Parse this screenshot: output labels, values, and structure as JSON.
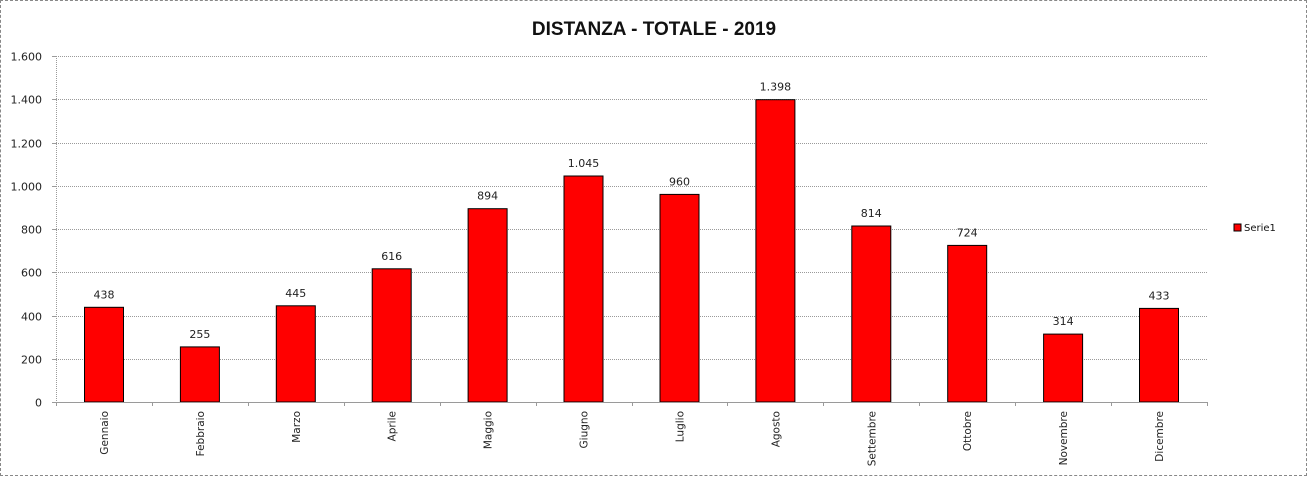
{
  "chart_data": {
    "type": "bar",
    "title": "DISTANZA - TOTALE - 2019",
    "xlabel": "",
    "ylabel": "",
    "categories": [
      "Gennaio",
      "Febbraio",
      "Marzo",
      "Aprile",
      "Maggio",
      "Giugno",
      "Luglio",
      "Agosto",
      "Settembre",
      "Ottobre",
      "Novembre",
      "Dicembre"
    ],
    "series": [
      {
        "name": "Serie1",
        "color": "#ff0000",
        "values": [
          438,
          255,
          445,
          616,
          894,
          1045,
          960,
          1398,
          814,
          724,
          314,
          433
        ],
        "labels": [
          "438",
          "255",
          "445",
          "616",
          "894",
          "1.045",
          "960",
          "1.398",
          "814",
          "724",
          "314",
          "433"
        ]
      }
    ],
    "ylim": [
      0,
      1600
    ],
    "yticks": [
      0,
      200,
      400,
      600,
      800,
      1000,
      1200,
      1400,
      1600
    ],
    "ytick_labels": [
      "0",
      "200",
      "400",
      "600",
      "800",
      "1.000",
      "1.200",
      "1.400",
      "1.600"
    ],
    "grid": true,
    "legend_position": "right"
  }
}
